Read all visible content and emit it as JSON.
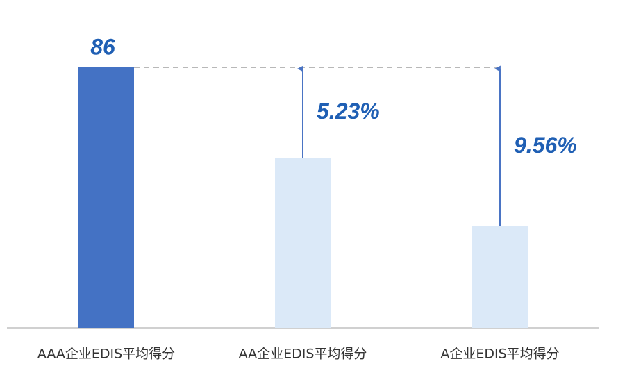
{
  "chart_data": {
    "type": "bar",
    "categories": [
      "AAA企业EDIS平均得分",
      "AA企业EDIS平均得分",
      "A企业EDIS平均得分"
    ],
    "values": [
      86,
      56,
      33.5
    ],
    "colors": [
      "#4472c4",
      "#dbe9f8",
      "#dbe9f8"
    ],
    "annotations": [
      "5.23%",
      "9.56%"
    ]
  }
}
